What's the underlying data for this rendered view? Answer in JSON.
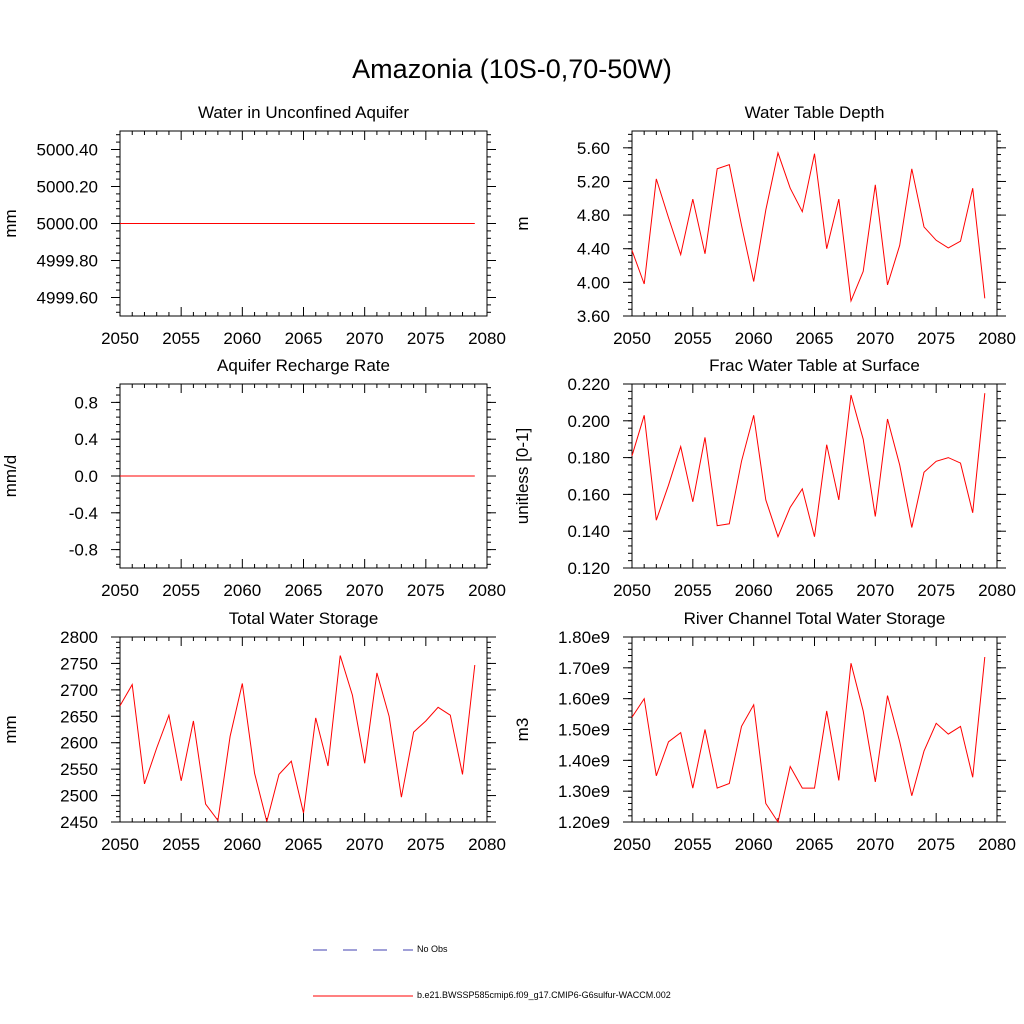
{
  "main_title": "Amazonia (10S-0,70-50W)",
  "colors": {
    "model_line": "#ff0000",
    "obs_line": "#4040b0",
    "axis": "#000000"
  },
  "legend": {
    "obs_label": "No Obs",
    "model_label": "b.e21.BWSSP585cmip6.f09_g17.CMIP6-G6sulfur-WACCM.002"
  },
  "chart_data": [
    {
      "type": "line",
      "title": "Water in Unconfined Aquifer",
      "ylabel": "mm",
      "xlim": [
        2050,
        2080
      ],
      "ylim": [
        4999.5,
        5000.5
      ],
      "xticks": [
        2050,
        2055,
        2060,
        2065,
        2070,
        2075,
        2080
      ],
      "yticks": [
        4999.6,
        4999.8,
        5000.0,
        5000.2,
        5000.4
      ],
      "ytick_labels": [
        "4999.60",
        "4999.80",
        "5000.00",
        "5000.20",
        "5000.40"
      ],
      "x": [
        2050,
        2079
      ],
      "y": [
        5000.0,
        5000.0
      ]
    },
    {
      "type": "line",
      "title": "Water Table Depth",
      "ylabel": "m",
      "xlim": [
        2050,
        2080
      ],
      "ylim": [
        3.6,
        5.8
      ],
      "xticks": [
        2050,
        2055,
        2060,
        2065,
        2070,
        2075,
        2080
      ],
      "yticks": [
        3.6,
        4.0,
        4.4,
        4.8,
        5.2,
        5.6
      ],
      "ytick_labels": [
        "3.60",
        "4.00",
        "4.40",
        "4.80",
        "5.20",
        "5.60"
      ],
      "x": [
        2050,
        2051,
        2052,
        2053,
        2054,
        2055,
        2056,
        2057,
        2058,
        2059,
        2060,
        2061,
        2062,
        2063,
        2064,
        2065,
        2066,
        2067,
        2068,
        2069,
        2070,
        2071,
        2072,
        2073,
        2074,
        2075,
        2076,
        2077,
        2078,
        2079
      ],
      "y": [
        4.38,
        3.98,
        5.23,
        4.77,
        4.33,
        4.99,
        4.34,
        5.35,
        5.4,
        4.68,
        4.01,
        4.86,
        5.54,
        5.12,
        4.84,
        5.53,
        4.4,
        4.99,
        3.78,
        4.13,
        5.16,
        3.97,
        4.44,
        5.35,
        4.66,
        4.5,
        4.41,
        4.49,
        5.12,
        3.81
      ]
    },
    {
      "type": "line",
      "title": "Aquifer Recharge Rate",
      "ylabel": "mm/d",
      "xlim": [
        2050,
        2080
      ],
      "ylim": [
        -1.0,
        1.0
      ],
      "xticks": [
        2050,
        2055,
        2060,
        2065,
        2070,
        2075,
        2080
      ],
      "yticks": [
        -0.8,
        -0.4,
        0.0,
        0.4,
        0.8
      ],
      "ytick_labels": [
        "-0.8",
        "-0.4",
        "0.0",
        "0.4",
        "0.8"
      ],
      "x": [
        2050,
        2079
      ],
      "y": [
        0.0,
        0.0
      ]
    },
    {
      "type": "line",
      "title": "Frac Water Table at Surface",
      "ylabel": "unitless [0-1]",
      "xlim": [
        2050,
        2080
      ],
      "ylim": [
        0.12,
        0.22
      ],
      "xticks": [
        2050,
        2055,
        2060,
        2065,
        2070,
        2075,
        2080
      ],
      "yticks": [
        0.12,
        0.14,
        0.16,
        0.18,
        0.2,
        0.22
      ],
      "ytick_labels": [
        "0.120",
        "0.140",
        "0.160",
        "0.180",
        "0.200",
        "0.220"
      ],
      "x": [
        2050,
        2051,
        2052,
        2053,
        2054,
        2055,
        2056,
        2057,
        2058,
        2059,
        2060,
        2061,
        2062,
        2063,
        2064,
        2065,
        2066,
        2067,
        2068,
        2069,
        2070,
        2071,
        2072,
        2073,
        2074,
        2075,
        2076,
        2077,
        2078,
        2079
      ],
      "y": [
        0.181,
        0.203,
        0.146,
        0.165,
        0.186,
        0.156,
        0.191,
        0.143,
        0.144,
        0.178,
        0.203,
        0.157,
        0.137,
        0.153,
        0.163,
        0.137,
        0.187,
        0.157,
        0.214,
        0.19,
        0.148,
        0.201,
        0.176,
        0.142,
        0.172,
        0.178,
        0.18,
        0.177,
        0.15,
        0.215
      ]
    },
    {
      "type": "line",
      "title": "Total Water Storage",
      "ylabel": "mm",
      "xlim": [
        2050,
        2080
      ],
      "ylim": [
        2450,
        2800
      ],
      "xticks": [
        2050,
        2055,
        2060,
        2065,
        2070,
        2075,
        2080
      ],
      "yticks": [
        2450,
        2500,
        2550,
        2600,
        2650,
        2700,
        2750,
        2800
      ],
      "ytick_labels": [
        "2450",
        "2500",
        "2550",
        "2600",
        "2650",
        "2700",
        "2750",
        "2800"
      ],
      "x": [
        2050,
        2051,
        2052,
        2053,
        2054,
        2055,
        2056,
        2057,
        2058,
        2059,
        2060,
        2061,
        2062,
        2063,
        2064,
        2065,
        2066,
        2067,
        2068,
        2069,
        2070,
        2071,
        2072,
        2073,
        2074,
        2075,
        2076,
        2077,
        2078,
        2079
      ],
      "y": [
        2670,
        2710,
        2522,
        2590,
        2652,
        2528,
        2641,
        2484,
        2453,
        2612,
        2712,
        2542,
        2451,
        2540,
        2565,
        2467,
        2647,
        2556,
        2765,
        2690,
        2561,
        2732,
        2650,
        2497,
        2620,
        2641,
        2667,
        2652,
        2540,
        2747
      ]
    },
    {
      "type": "line",
      "title": "River Channel Total Water Storage",
      "ylabel": "m3",
      "xlim": [
        2050,
        2080
      ],
      "ylim": [
        1200000000.0,
        1800000000.0
      ],
      "xticks": [
        2050,
        2055,
        2060,
        2065,
        2070,
        2075,
        2080
      ],
      "yticks": [
        1200000000.0,
        1300000000.0,
        1400000000.0,
        1500000000.0,
        1600000000.0,
        1700000000.0,
        1800000000.0
      ],
      "ytick_labels": [
        "1.20e9",
        "1.30e9",
        "1.40e9",
        "1.50e9",
        "1.60e9",
        "1.70e9",
        "1.80e9"
      ],
      "x": [
        2050,
        2051,
        2052,
        2053,
        2054,
        2055,
        2056,
        2057,
        2058,
        2059,
        2060,
        2061,
        2062,
        2063,
        2064,
        2065,
        2066,
        2067,
        2068,
        2069,
        2070,
        2071,
        2072,
        2073,
        2074,
        2075,
        2076,
        2077,
        2078,
        2079
      ],
      "y": [
        1540000000.0,
        1600000000.0,
        1350000000.0,
        1460000000.0,
        1490000000.0,
        1310000000.0,
        1500000000.0,
        1310000000.0,
        1325000000.0,
        1510000000.0,
        1580000000.0,
        1260000000.0,
        1200000000.0,
        1380000000.0,
        1310000000.0,
        1310000000.0,
        1560000000.0,
        1335000000.0,
        1715000000.0,
        1560000000.0,
        1330000000.0,
        1610000000.0,
        1460000000.0,
        1285000000.0,
        1430000000.0,
        1520000000.0,
        1485000000.0,
        1510000000.0,
        1345000000.0,
        1735000000.0
      ]
    }
  ]
}
